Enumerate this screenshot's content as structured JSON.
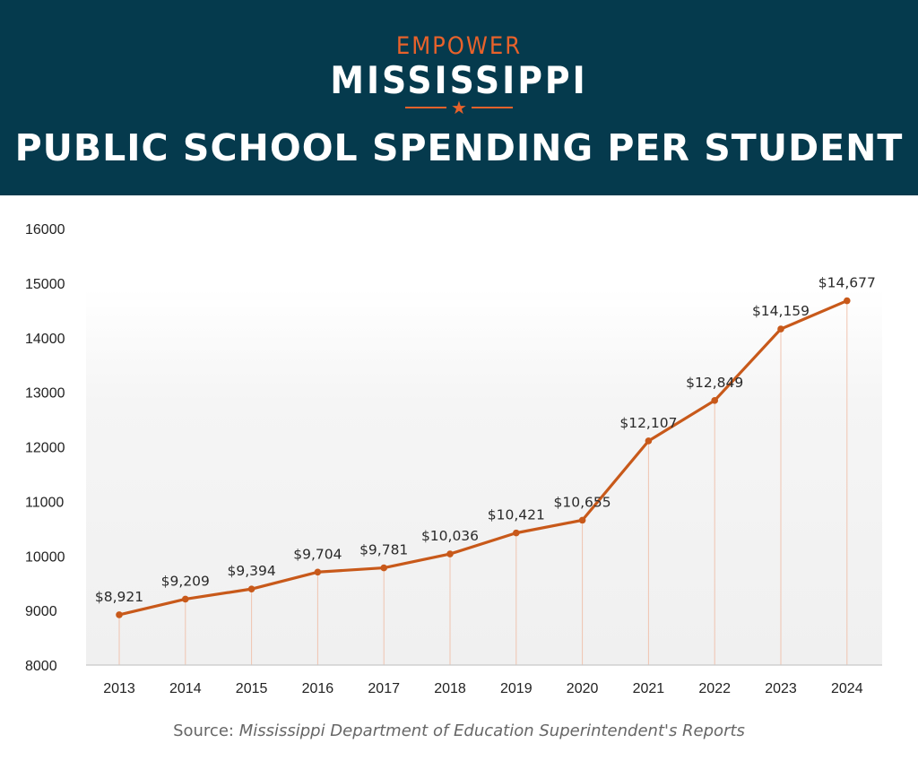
{
  "header": {
    "brand_top": "EMPOWER",
    "brand_main": "MISSISSIPPI",
    "brand_star": "★",
    "title": "PUBLIC SCHOOL SPENDING PER STUDENT"
  },
  "source": {
    "prefix": "Source: ",
    "text": "Mississippi Department of Education Superintendent's Reports"
  },
  "colors": {
    "banner": "#053a4d",
    "accent": "#e8622b",
    "line": "#c8591a"
  },
  "chart_data": {
    "type": "line",
    "title": "PUBLIC SCHOOL SPENDING PER STUDENT",
    "xlabel": "",
    "ylabel": "",
    "categories": [
      "2013",
      "2014",
      "2015",
      "2016",
      "2017",
      "2018",
      "2019",
      "2020",
      "2021",
      "2022",
      "2023",
      "2024"
    ],
    "values": [
      8921,
      9209,
      9394,
      9704,
      9781,
      10036,
      10421,
      10655,
      12107,
      12849,
      14159,
      14677
    ],
    "data_labels": [
      "$8,921",
      "$9,209",
      "$9,394",
      "$9,704",
      "$9,781",
      "$10,036",
      "$10,421",
      "$10,655",
      "$12,107",
      "$12,849",
      "$14,159",
      "$14,677"
    ],
    "ylim": [
      8000,
      16000
    ],
    "yticks": [
      8000,
      9000,
      10000,
      11000,
      12000,
      13000,
      14000,
      15000,
      16000
    ],
    "grid": false
  }
}
